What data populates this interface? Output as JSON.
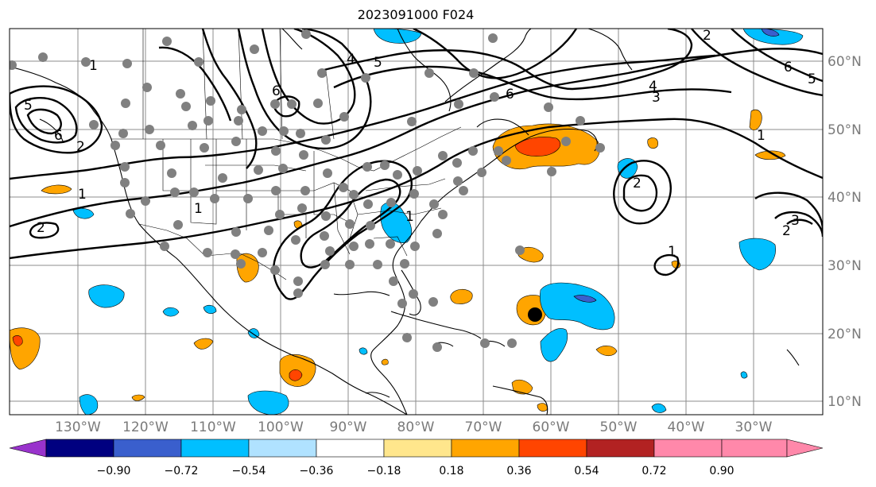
{
  "title": "2023091000 F024",
  "longitude_labels": [
    "130°W",
    "120°W",
    "110°W",
    "100°W",
    "90°W",
    "80°W",
    "70°W",
    "60°W",
    "50°W",
    "40°W",
    "30°W"
  ],
  "latitude_labels": [
    "60°N",
    "50°N",
    "40°N",
    "30°N",
    "20°N",
    "10°N"
  ],
  "colorbar": {
    "ticks": [
      "−0.90",
      "−0.72",
      "−0.54",
      "−0.36",
      "−0.18",
      "0.18",
      "0.36",
      "0.54",
      "0.72",
      "0.90"
    ],
    "colors": [
      "#9933cc",
      "#000080",
      "#3a5fcd",
      "#00bfff",
      "#b0e2ff",
      "#ffffff",
      "#ffe68c",
      "#ffa500",
      "#ff4500",
      "#b22222",
      "#ff88aa"
    ]
  },
  "contour_labels": [
    "1",
    "1",
    "1",
    "1",
    "1",
    "1",
    "2",
    "2",
    "2",
    "2",
    "3",
    "3",
    "4",
    "4",
    "5",
    "5",
    "5",
    "6",
    "6",
    "6",
    "6",
    "2"
  ],
  "colors": {
    "positive_light": "#ffa500",
    "positive_strong": "#ff4500",
    "negative_light": "#00bfff",
    "negative_strong": "#3a5fcd",
    "station": "#808080",
    "storm_center": "#000000"
  }
}
